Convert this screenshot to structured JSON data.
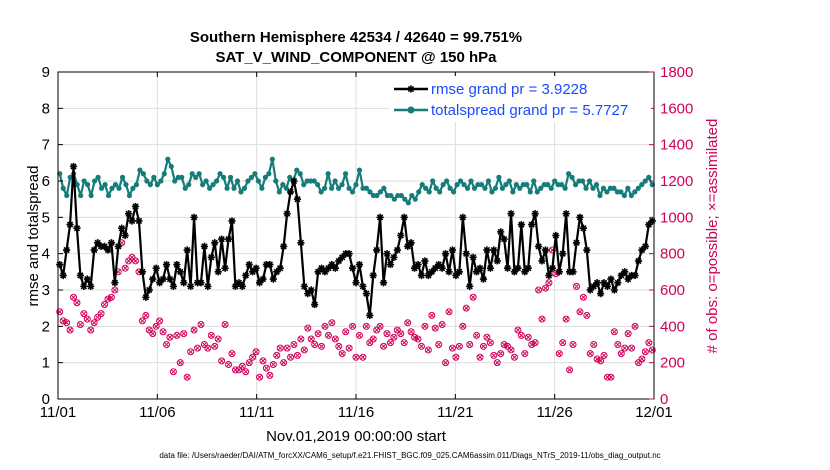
{
  "chart_data": {
    "type": "line",
    "title": "Southern Hemisphere 42534 / 42640 = 99.751%",
    "subtitle": "SAT_V_WIND_COMPONENT @ 150 hPa",
    "xlabel": "Nov.01,2019 00:00:00 start",
    "ylabel": "rmse and totalspread",
    "ylabel_right": "# of obs: o=possible; ×=assimilated",
    "xlim": [
      0,
      30
    ],
    "ylim": [
      0,
      9
    ],
    "ylim_right": [
      0,
      1800
    ],
    "x_ticks": [
      {
        "value": 0,
        "label": "11/01"
      },
      {
        "value": 5,
        "label": "11/06"
      },
      {
        "value": 10,
        "label": "11/11"
      },
      {
        "value": 15,
        "label": "11/16"
      },
      {
        "value": 20,
        "label": "11/21"
      },
      {
        "value": 25,
        "label": "11/26"
      },
      {
        "value": 30,
        "label": "12/01"
      }
    ],
    "y_ticks": [
      "0",
      "1",
      "2",
      "3",
      "4",
      "5",
      "6",
      "7",
      "8",
      "9"
    ],
    "y_ticks_right": [
      "0",
      "200",
      "400",
      "600",
      "800",
      "1000",
      "1200",
      "1400",
      "1600",
      "1800"
    ],
    "footer": "data file: /Users/raeder/DAI/ATM_forcXX/CAM6_setup/f.e21.FHIST_BGC.f09_025.CAM6assim.011/Diags_NTrS_2019-11/obs_diag_output.nc",
    "legend_position": "top-right",
    "series": [
      {
        "name": "rmse grand pr = 3.9228",
        "color": "#000000",
        "marker": "asterisk",
        "values": [
          3.7,
          3.4,
          4.1,
          4.8,
          6.4,
          4.7,
          3.4,
          3.1,
          3.3,
          3.1,
          4.1,
          4.3,
          4.2,
          4.2,
          4.1,
          4.3,
          3.2,
          4.2,
          4.7,
          4.5,
          5.1,
          4.9,
          5.3,
          4.9,
          3.5,
          2.8,
          3.0,
          3.3,
          3.6,
          3.2,
          3.3,
          3.7,
          3.3,
          3.1,
          3.7,
          3.5,
          3.2,
          4.1,
          3.1,
          5.0,
          3.2,
          3.2,
          4.2,
          3.1,
          3.9,
          4.3,
          3.5,
          4.4,
          3.6,
          4.4,
          4.9,
          3.1,
          3.2,
          3.1,
          3.4,
          3.7,
          3.5,
          3.6,
          3.2,
          3.3,
          3.7,
          3.7,
          3.3,
          3.5,
          3.6,
          4.2,
          5.1,
          5.7,
          6.0,
          5.5,
          4.3,
          3.1,
          2.9,
          3.0,
          2.6,
          3.5,
          3.6,
          3.5,
          3.6,
          3.7,
          3.6,
          3.8,
          3.9,
          4.0,
          4.0,
          3.6,
          3.2,
          3.7,
          3.1,
          2.9,
          2.3,
          3.4,
          4.1,
          5.0,
          3.2,
          4.0,
          3.7,
          3.9,
          4.1,
          4.5,
          5.0,
          4.2,
          4.3,
          3.6,
          3.7,
          3.4,
          3.8,
          3.4,
          3.5,
          3.6,
          3.7,
          3.6,
          4.0,
          3.5,
          4.1,
          3.4,
          3.5,
          5.0,
          4.0,
          3.1,
          3.9,
          3.5,
          3.6,
          3.3,
          4.1,
          3.6,
          4.1,
          3.8,
          4.6,
          4.4,
          3.6,
          5.1,
          3.5,
          3.6,
          4.8,
          3.5,
          3.6,
          4.8,
          5.1,
          4.2,
          3.8,
          4.1,
          3.4,
          3.6,
          4.5,
          3.5,
          4.0,
          5.1,
          3.5,
          3.5,
          4.3,
          5.0,
          4.7,
          4.1,
          3.0,
          3.1,
          3.2,
          2.9,
          3.2,
          3.1,
          3.3,
          3.0,
          3.2,
          3.4,
          3.5,
          3.3,
          3.4,
          3.4,
          3.8,
          4.1,
          4.2,
          4.8,
          4.9
        ],
        "highlight_note": ""
      },
      {
        "name": "totalspread grand pr = 5.7727",
        "color": "#167c7a",
        "marker": "circle",
        "values": [
          6.2,
          5.8,
          5.6,
          6.1,
          6.2,
          5.9,
          5.6,
          6.0,
          5.9,
          5.6,
          6.0,
          6.1,
          5.8,
          5.9,
          5.6,
          5.8,
          5.9,
          5.8,
          6.1,
          5.9,
          5.6,
          5.8,
          5.9,
          6.3,
          6.2,
          6.0,
          5.9,
          6.1,
          5.9,
          6.0,
          6.2,
          6.6,
          6.4,
          6.0,
          6.1,
          6.1,
          5.8,
          5.9,
          6.2,
          6.1,
          6.2,
          5.9,
          6.0,
          5.8,
          5.9,
          6.0,
          6.2,
          6.1,
          5.8,
          6.1,
          5.8,
          6.0,
          5.7,
          5.8,
          6.0,
          6.1,
          6.2,
          6.0,
          5.8,
          6.1,
          6.2,
          6.6,
          6.0,
          5.7,
          5.9,
          5.8,
          6.1,
          6.0,
          6.3,
          6.2,
          5.9,
          6.0,
          6.0,
          6.0,
          5.9,
          5.7,
          5.8,
          6.2,
          5.8,
          6.0,
          5.8,
          5.9,
          6.2,
          5.8,
          5.7,
          5.9,
          6.3,
          5.8,
          5.8,
          5.7,
          5.6,
          5.6,
          5.7,
          5.8,
          5.6,
          5.6,
          5.5,
          5.6,
          5.6,
          5.5,
          5.4,
          5.6,
          5.5,
          5.7,
          5.9,
          5.8,
          5.7,
          6.0,
          5.8,
          5.7,
          5.9,
          6.0,
          5.8,
          5.7,
          5.9,
          6.0,
          5.9,
          5.8,
          6.0,
          5.8,
          5.9,
          5.9,
          5.8,
          6.0,
          5.7,
          5.8,
          6.1,
          5.8,
          5.9,
          6.0,
          5.7,
          5.9,
          5.8,
          5.9,
          5.9,
          5.7,
          6.0,
          5.7,
          5.8,
          5.9,
          5.9,
          5.8,
          6.0,
          5.9,
          5.9,
          5.8,
          6.2,
          6.1,
          5.9,
          6.0,
          6.0,
          5.8,
          6.0,
          5.8,
          5.9,
          5.6,
          5.8,
          5.7,
          5.8,
          5.8,
          5.7,
          5.7,
          5.6,
          5.8,
          5.6,
          5.7,
          5.8,
          5.9,
          6.0,
          6.1,
          5.9
        ],
        "highlight_note": ""
      }
    ],
    "obs_counts": {
      "name": "# of obs",
      "color": "#d1005a",
      "possible": [
        480,
        430,
        420,
        380,
        560,
        530,
        410,
        470,
        440,
        380,
        420,
        450,
        470,
        520,
        550,
        560,
        600,
        700,
        860,
        720,
        760,
        780,
        760,
        700,
        430,
        460,
        380,
        360,
        400,
        430,
        370,
        300,
        340,
        150,
        350,
        200,
        360,
        120,
        260,
        380,
        280,
        410,
        300,
        280,
        350,
        290,
        330,
        210,
        410,
        190,
        250,
        160,
        160,
        180,
        150,
        200,
        230,
        260,
        120,
        210,
        170,
        130,
        190,
        240,
        280,
        200,
        280,
        230,
        300,
        240,
        330,
        270,
        390,
        330,
        300,
        360,
        290,
        400,
        350,
        420,
        330,
        290,
        250,
        370,
        280,
        400,
        230,
        350,
        230,
        400,
        310,
        330,
        380,
        400,
        290,
        360,
        310,
        340,
        380,
        360,
        310,
        420,
        370,
        340,
        330,
        290,
        400,
        270,
        460,
        390,
        300,
        410,
        200,
        480,
        280,
        230,
        290,
        400,
        500,
        300,
        560,
        350,
        230,
        290,
        340,
        310,
        240,
        200,
        250,
        300,
        290,
        270,
        230,
        380,
        350,
        250,
        340,
        300,
        310,
        600,
        440,
        610,
        640,
        820,
        690,
        250,
        310,
        440,
        160,
        300,
        620,
        480,
        560,
        460,
        250,
        300,
        220,
        210,
        240,
        120,
        120,
        370,
        300,
        250,
        280,
        360,
        280,
        400,
        200,
        220,
        260,
        310,
        270
      ],
      "assimilated": [
        480,
        430,
        420,
        380,
        560,
        530,
        410,
        470,
        440,
        380,
        420,
        450,
        470,
        520,
        550,
        560,
        600,
        700,
        860,
        720,
        760,
        780,
        760,
        700,
        430,
        460,
        380,
        360,
        400,
        430,
        370,
        300,
        340,
        150,
        350,
        200,
        360,
        120,
        260,
        380,
        280,
        410,
        300,
        280,
        350,
        290,
        330,
        210,
        410,
        190,
        250,
        160,
        160,
        180,
        150,
        200,
        230,
        260,
        120,
        210,
        170,
        130,
        190,
        240,
        280,
        200,
        280,
        230,
        300,
        240,
        330,
        270,
        390,
        330,
        300,
        360,
        290,
        400,
        350,
        420,
        330,
        290,
        250,
        370,
        280,
        400,
        230,
        350,
        230,
        400,
        310,
        330,
        380,
        400,
        290,
        360,
        310,
        340,
        380,
        360,
        310,
        420,
        370,
        340,
        330,
        290,
        400,
        270,
        460,
        390,
        300,
        410,
        200,
        480,
        280,
        230,
        290,
        400,
        500,
        300,
        560,
        350,
        230,
        290,
        340,
        310,
        240,
        200,
        250,
        300,
        290,
        270,
        230,
        380,
        350,
        250,
        340,
        300,
        310,
        600,
        440,
        610,
        640,
        820,
        690,
        250,
        310,
        440,
        160,
        300,
        620,
        480,
        560,
        460,
        250,
        300,
        220,
        210,
        240,
        120,
        120,
        370,
        300,
        250,
        280,
        360,
        280,
        400,
        200,
        220,
        260,
        310,
        270
      ]
    }
  }
}
